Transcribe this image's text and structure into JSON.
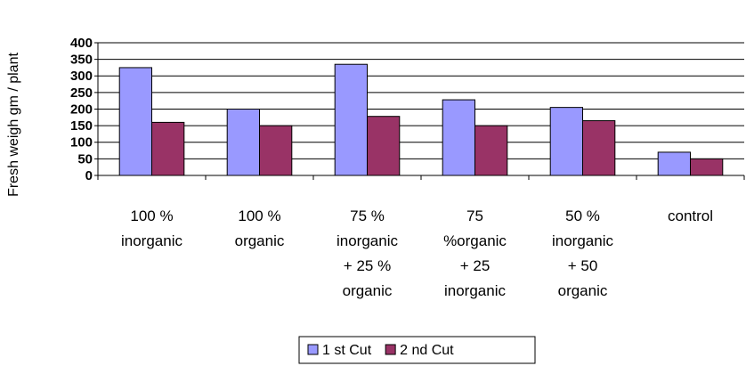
{
  "chart_data": {
    "type": "bar",
    "y_label": "Fresh weigh gm / plant",
    "categories": [
      "100 %\ninorganic",
      "100 %\norganic",
      "75 %\ninorganic\n+ 25 %\norganic",
      "75\n%organic\n+ 25\ninorganic",
      "50 %\ninorganic\n+ 50\norganic",
      "control"
    ],
    "series": [
      {
        "name": "1 st Cut",
        "color": "#9999ff",
        "values": [
          325,
          200,
          335,
          228,
          205,
          70
        ]
      },
      {
        "name": "2 nd Cut",
        "color": "#993366",
        "values": [
          160,
          150,
          178,
          150,
          165,
          50
        ]
      }
    ],
    "ylim": [
      0,
      400
    ],
    "yticks": [
      0,
      50,
      100,
      150,
      200,
      250,
      300,
      350,
      400
    ],
    "grid": true,
    "legend": "bottom"
  }
}
